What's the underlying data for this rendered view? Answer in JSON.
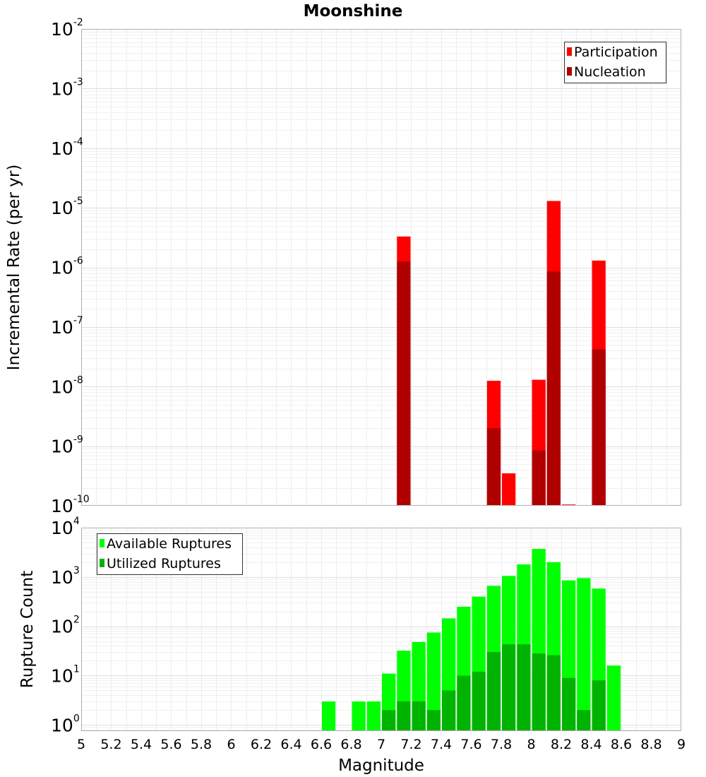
{
  "chart_data": [
    {
      "type": "bar",
      "title": "Moonshine",
      "xlabel": "",
      "ylabel": "Incremental Rate (per yr)",
      "yscale": "log",
      "ylim": [
        1e-10,
        0.01
      ],
      "xlim": [
        5,
        9
      ],
      "bin_width": 0.1,
      "grid": true,
      "legend_position": "top-right",
      "x": [
        7.15,
        7.75,
        7.85,
        8.05,
        8.15,
        8.25,
        8.45
      ],
      "series": [
        {
          "name": "Participation",
          "color": "#ff0000",
          "values": [
            3.3e-06,
            1.25e-08,
            3.5e-10,
            1.3e-08,
            1.3e-05,
            1.05e-10,
            1.3e-06
          ]
        },
        {
          "name": "Nucleation",
          "color": "#b00000",
          "values": [
            1.25e-06,
            2e-09,
            null,
            8.5e-10,
            8.5e-07,
            null,
            4.2e-08
          ]
        }
      ]
    },
    {
      "type": "bar",
      "title": "",
      "xlabel": "Magnitude",
      "ylabel": "Rupture Count",
      "yscale": "log",
      "ylim": [
        0.75,
        10000
      ],
      "xlim": [
        5,
        9
      ],
      "bin_width": 0.1,
      "grid": true,
      "legend_position": "top-left",
      "x_ticks": [
        "5",
        "5.2",
        "5.4",
        "5.6",
        "5.8",
        "6",
        "6.2",
        "6.4",
        "6.6",
        "6.8",
        "7",
        "7.2",
        "7.4",
        "7.6",
        "7.8",
        "8",
        "8.2",
        "8.4",
        "8.6",
        "8.8",
        "9"
      ],
      "x": [
        6.65,
        6.85,
        6.95,
        7.05,
        7.15,
        7.25,
        7.35,
        7.45,
        7.55,
        7.65,
        7.75,
        7.85,
        7.95,
        8.05,
        8.15,
        8.25,
        8.35,
        8.45,
        8.55
      ],
      "series": [
        {
          "name": "Available Ruptures",
          "color": "#00ff00",
          "values": [
            3,
            3,
            3,
            11,
            32,
            48,
            75,
            145,
            250,
            400,
            660,
            1050,
            1800,
            3700,
            2000,
            850,
            950,
            580,
            16
          ]
        },
        {
          "name": "Utilized Ruptures",
          "color": "#00b300",
          "values": [
            null,
            null,
            null,
            2,
            3,
            3,
            2,
            5,
            10,
            12,
            30,
            43,
            43,
            28,
            26,
            9,
            2,
            8,
            null
          ]
        }
      ]
    }
  ]
}
